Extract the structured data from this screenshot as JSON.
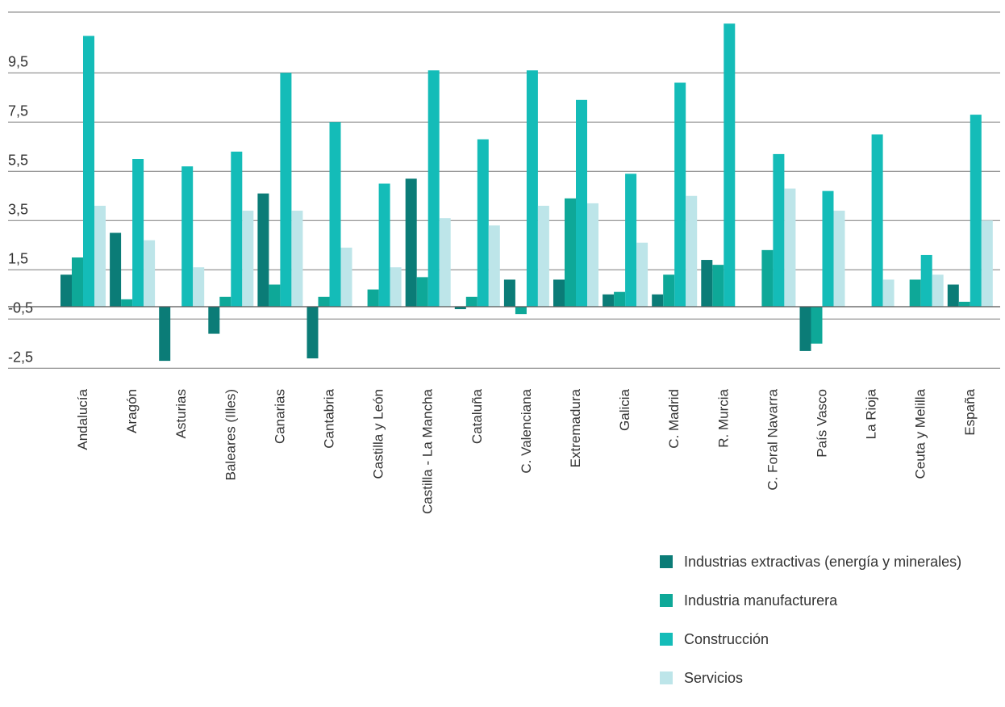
{
  "chart_data": {
    "type": "bar",
    "categories": [
      "Andalucía",
      "Aragón",
      "Asturias",
      "Baleares (Illes)",
      "Canarias",
      "Cantabria",
      "Castilla y León",
      "Castilla - La Mancha",
      "Cataluña",
      "C. Valenciana",
      "Extremadura",
      "Galicia",
      "C. Madrid",
      "R. Murcia",
      "C. Foral Navarra",
      "País Vasco",
      "La Rioja",
      "Ceuta y Melilla",
      "España"
    ],
    "series": [
      {
        "name": "Industrias extractivas (energía y minerales)",
        "color": "#0b7c77",
        "values": [
          1.3,
          3.0,
          -2.2,
          -1.1,
          4.6,
          -2.1,
          0,
          5.2,
          -0.1,
          1.1,
          1.1,
          0.5,
          0.5,
          1.9,
          0,
          -1.8,
          0,
          0,
          0.9
        ]
      },
      {
        "name": "Industria manufacturera",
        "color": "#0ea898",
        "values": [
          2.0,
          0.3,
          0,
          0.4,
          0.9,
          0.4,
          0.7,
          1.2,
          0.4,
          -0.3,
          4.4,
          0.6,
          1.3,
          1.7,
          2.3,
          -1.5,
          0,
          1.1,
          0.2
        ]
      },
      {
        "name": "Construcción",
        "color": "#14bcb8",
        "values": [
          11.0,
          6.0,
          5.7,
          6.3,
          9.5,
          7.5,
          5.0,
          9.6,
          6.8,
          9.6,
          8.4,
          5.4,
          9.1,
          11.5,
          6.2,
          4.7,
          7.0,
          2.1,
          7.8
        ]
      },
      {
        "name": "Servicios",
        "color": "#bde5e9",
        "values": [
          4.1,
          2.7,
          1.6,
          3.9,
          3.9,
          2.4,
          1.6,
          3.6,
          3.3,
          4.1,
          4.2,
          2.6,
          4.5,
          0,
          4.8,
          3.9,
          1.1,
          1.3,
          3.5
        ]
      }
    ],
    "yticks": [
      "9,5",
      "7,5",
      "5,5",
      "3,5",
      "1,5",
      "-0,5",
      "-2,5"
    ],
    "ytick_values": [
      9.5,
      7.5,
      5.5,
      3.5,
      1.5,
      -0.5,
      -2.5
    ],
    "ylim": [
      -2.5,
      11.5
    ],
    "grid": true,
    "legend_position": "bottom-right",
    "title": "",
    "xlabel": "",
    "ylabel": ""
  }
}
